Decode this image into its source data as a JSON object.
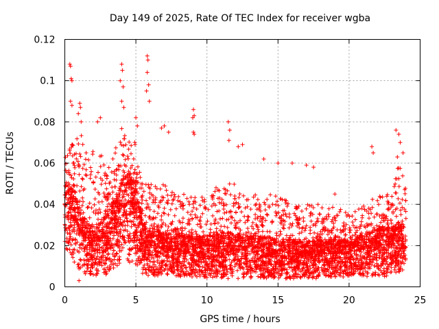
{
  "chart_data": {
    "type": "scatter",
    "title": "Day 149 of 2025, Rate Of TEC Index for receiver wgba",
    "xlabel": "GPS time / hours",
    "ylabel": "ROTI / TECUs",
    "xlim": [
      0,
      25
    ],
    "ylim": [
      0,
      0.12
    ],
    "xticks": [
      0,
      5,
      10,
      15,
      20,
      25
    ],
    "xtick_labels": [
      "0",
      "5",
      "10",
      "15",
      "20",
      "25"
    ],
    "yticks": [
      0,
      0.02,
      0.04,
      0.06,
      0.08,
      0.1,
      0.12
    ],
    "ytick_labels": [
      "0",
      "0.02",
      "0.04",
      "0.06",
      "0.08",
      "0.1",
      "0.12"
    ],
    "grid": true,
    "marker": "+",
    "color": "#ff0000",
    "x_data_range": [
      0,
      24
    ],
    "envelope": {
      "description": "Approximate lower/typical/upper ROTI envelope by hour (dense scatter)",
      "x": [
        0,
        0.5,
        1,
        1.5,
        2,
        2.5,
        3,
        3.5,
        4,
        4.5,
        5,
        5.5,
        6,
        7,
        8,
        9,
        10,
        11,
        12,
        13,
        14,
        15,
        16,
        17,
        18,
        19,
        20,
        21,
        22,
        23,
        23.5,
        24
      ],
      "low": [
        0.02,
        0.012,
        0.008,
        0.006,
        0.005,
        0.005,
        0.006,
        0.008,
        0.012,
        0.012,
        0.01,
        0.006,
        0.005,
        0.005,
        0.005,
        0.004,
        0.004,
        0.004,
        0.004,
        0.004,
        0.004,
        0.004,
        0.004,
        0.004,
        0.004,
        0.004,
        0.005,
        0.005,
        0.005,
        0.005,
        0.006,
        0.008
      ],
      "mid": [
        0.04,
        0.035,
        0.028,
        0.022,
        0.02,
        0.022,
        0.025,
        0.03,
        0.038,
        0.04,
        0.035,
        0.022,
        0.02,
        0.018,
        0.018,
        0.017,
        0.017,
        0.018,
        0.018,
        0.017,
        0.017,
        0.016,
        0.016,
        0.015,
        0.016,
        0.016,
        0.016,
        0.018,
        0.02,
        0.02,
        0.022,
        0.018
      ],
      "high": [
        0.065,
        0.07,
        0.078,
        0.065,
        0.07,
        0.065,
        0.06,
        0.065,
        0.08,
        0.075,
        0.07,
        0.05,
        0.05,
        0.05,
        0.045,
        0.045,
        0.045,
        0.05,
        0.05,
        0.045,
        0.045,
        0.045,
        0.04,
        0.04,
        0.04,
        0.04,
        0.035,
        0.04,
        0.045,
        0.045,
        0.06,
        0.05
      ]
    },
    "notable_points": [
      {
        "x": 0.35,
        "y": 0.108
      },
      {
        "x": 0.4,
        "y": 0.107
      },
      {
        "x": 0.45,
        "y": 0.101
      },
      {
        "x": 0.5,
        "y": 0.1
      },
      {
        "x": 0.4,
        "y": 0.09
      },
      {
        "x": 0.5,
        "y": 0.088
      },
      {
        "x": 1.05,
        "y": 0.089
      },
      {
        "x": 1.1,
        "y": 0.087
      },
      {
        "x": 0.95,
        "y": 0.084
      },
      {
        "x": 1.15,
        "y": 0.08
      },
      {
        "x": 1.0,
        "y": 0.003
      },
      {
        "x": 2.3,
        "y": 0.08
      },
      {
        "x": 2.5,
        "y": 0.082
      },
      {
        "x": 4.0,
        "y": 0.108
      },
      {
        "x": 4.05,
        "y": 0.105
      },
      {
        "x": 3.9,
        "y": 0.1
      },
      {
        "x": 4.1,
        "y": 0.097
      },
      {
        "x": 4.0,
        "y": 0.09
      },
      {
        "x": 4.15,
        "y": 0.087
      },
      {
        "x": 5.0,
        "y": 0.082
      },
      {
        "x": 5.1,
        "y": 0.078
      },
      {
        "x": 5.8,
        "y": 0.112
      },
      {
        "x": 5.85,
        "y": 0.11
      },
      {
        "x": 5.8,
        "y": 0.104
      },
      {
        "x": 5.9,
        "y": 0.098
      },
      {
        "x": 5.75,
        "y": 0.095
      },
      {
        "x": 5.95,
        "y": 0.09
      },
      {
        "x": 6.8,
        "y": 0.077
      },
      {
        "x": 7.0,
        "y": 0.078
      },
      {
        "x": 7.3,
        "y": 0.075
      },
      {
        "x": 9.05,
        "y": 0.086
      },
      {
        "x": 9.1,
        "y": 0.083
      },
      {
        "x": 9.0,
        "y": 0.082
      },
      {
        "x": 9.05,
        "y": 0.075
      },
      {
        "x": 9.1,
        "y": 0.074
      },
      {
        "x": 11.5,
        "y": 0.08
      },
      {
        "x": 11.6,
        "y": 0.076
      },
      {
        "x": 11.55,
        "y": 0.071
      },
      {
        "x": 12.2,
        "y": 0.068
      },
      {
        "x": 12.5,
        "y": 0.069
      },
      {
        "x": 14.0,
        "y": 0.062
      },
      {
        "x": 15.0,
        "y": 0.06
      },
      {
        "x": 16.0,
        "y": 0.06
      },
      {
        "x": 17.0,
        "y": 0.059
      },
      {
        "x": 17.5,
        "y": 0.058
      },
      {
        "x": 19.0,
        "y": 0.045
      },
      {
        "x": 21.6,
        "y": 0.068
      },
      {
        "x": 21.7,
        "y": 0.065
      },
      {
        "x": 23.3,
        "y": 0.076
      },
      {
        "x": 23.5,
        "y": 0.074
      },
      {
        "x": 23.6,
        "y": 0.07
      },
      {
        "x": 23.8,
        "y": 0.065
      },
      {
        "x": 23.4,
        "y": 0.063
      }
    ]
  }
}
